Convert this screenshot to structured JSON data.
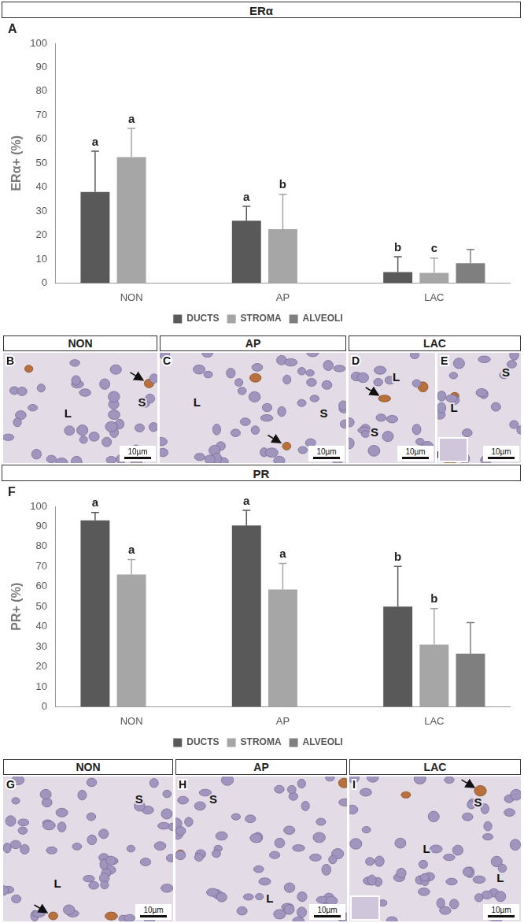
{
  "chart_data": [
    {
      "type": "bar",
      "title": "ERα",
      "panel": "A",
      "ylabel": "ERα+ (%)",
      "categories": [
        "NON",
        "AP",
        "LAC"
      ],
      "series": [
        {
          "name": "DUCTS",
          "color": "#595959",
          "values": [
            38,
            26,
            4.6
          ],
          "errors": [
            17,
            6,
            6.4
          ],
          "letters": [
            "a",
            "a",
            "b"
          ]
        },
        {
          "name": "STROMA",
          "color": "#a6a6a6",
          "values": [
            52.5,
            22.5,
            4.2
          ],
          "errors": [
            12,
            14.5,
            6.2
          ],
          "letters": [
            "a",
            "b",
            "c"
          ]
        },
        {
          "name": "ALVEOLI",
          "color": "#7f7f7f",
          "values": [
            null,
            null,
            8.3
          ],
          "errors": [
            null,
            null,
            5.7
          ],
          "letters": [
            null,
            null,
            null
          ]
        }
      ],
      "ylim": [
        0,
        100
      ],
      "yticks": [
        0,
        10,
        20,
        30,
        40,
        50,
        60,
        70,
        80,
        90,
        100
      ],
      "grid": false,
      "legend": "bottom"
    },
    {
      "type": "bar",
      "title": "PR",
      "panel": "F",
      "ylabel": "PR+ (%)",
      "categories": [
        "NON",
        "AP",
        "LAC"
      ],
      "series": [
        {
          "name": "DUCTS",
          "color": "#595959",
          "values": [
            93,
            90.5,
            50
          ],
          "errors": [
            4,
            7.5,
            20
          ],
          "letters": [
            "a",
            "a",
            "b"
          ]
        },
        {
          "name": "STROMA",
          "color": "#a6a6a6",
          "values": [
            66,
            58.5,
            31
          ],
          "errors": [
            7.5,
            13,
            18
          ],
          "letters": [
            "a",
            "a",
            "b"
          ]
        },
        {
          "name": "ALVEOLI",
          "color": "#7f7f7f",
          "values": [
            null,
            null,
            26.5
          ],
          "errors": [
            null,
            null,
            15.5
          ],
          "letters": [
            null,
            null,
            null
          ]
        }
      ],
      "ylim": [
        0,
        100
      ],
      "yticks": [
        0,
        10,
        20,
        30,
        40,
        50,
        60,
        70,
        80,
        90,
        100
      ],
      "grid": false,
      "legend": "bottom"
    }
  ],
  "image_rows": [
    {
      "groups": [
        {
          "label": "NON",
          "panels": [
            {
              "letter": "B",
              "marks": [
                "L",
                "S"
              ],
              "scale_bar": "10µm"
            }
          ]
        },
        {
          "label": "AP",
          "panels": [
            {
              "letter": "C",
              "marks": [
                "L",
                "S"
              ],
              "scale_bar": "10µm"
            }
          ]
        },
        {
          "label": "LAC",
          "panels": [
            {
              "letter": "D",
              "marks": [
                "L",
                "S"
              ],
              "scale_bar": "10µm"
            },
            {
              "letter": "E",
              "marks": [
                "S",
                "L"
              ],
              "scale_bar": "10µm"
            }
          ]
        }
      ]
    },
    {
      "groups": [
        {
          "label": "NON",
          "panels": [
            {
              "letter": "G",
              "marks": [
                "S",
                "L"
              ],
              "scale_bar": "10µm"
            }
          ]
        },
        {
          "label": "AP",
          "panels": [
            {
              "letter": "H",
              "marks": [
                "S",
                "L"
              ],
              "scale_bar": "10µm"
            }
          ]
        },
        {
          "label": "LAC",
          "panels": [
            {
              "letter": "I",
              "marks": [
                "L",
                "S",
                "L"
              ],
              "scale_bar": "10µm"
            }
          ]
        }
      ]
    }
  ]
}
